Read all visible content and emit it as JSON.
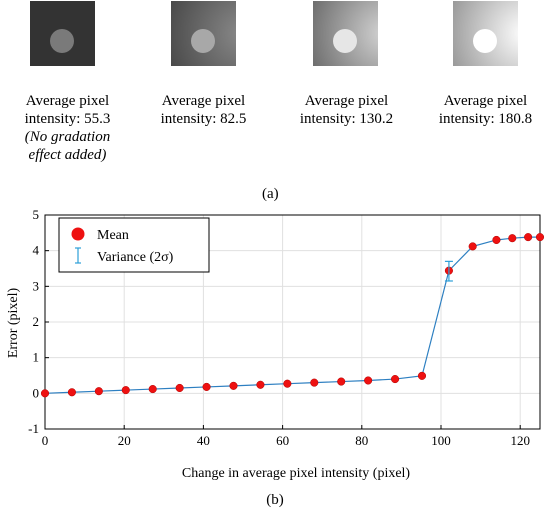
{
  "panel_a": {
    "label": "(a)",
    "items": [
      {
        "caption_line1": "Average pixel",
        "caption_line2": "intensity: 55.3",
        "note_line1": "(No gradation",
        "note_line2": "effect added)",
        "background": "#333333",
        "circle": "#7a7a7a",
        "gradient": [],
        "gradient_strength": 0
      },
      {
        "caption_line1": "Average pixel",
        "caption_line2": "intensity: 82.5",
        "note_line1": "",
        "note_line2": "",
        "background": "#4a4a4a",
        "circle": "#a8a8a8",
        "gradient_strength": 0.35
      },
      {
        "caption_line1": "Average pixel",
        "caption_line2": "intensity: 130.2",
        "note_line1": "",
        "note_line2": "",
        "background": "#6e6e6e",
        "circle": "#e6e6e6",
        "gradient_strength": 0.7
      },
      {
        "caption_line1": "Average pixel",
        "caption_line2": "intensity: 180.8",
        "note_line1": "",
        "note_line2": "",
        "background": "#9a9a9a",
        "circle": "#ffffff",
        "gradient_strength": 1.0
      }
    ]
  },
  "panel_b": {
    "label": "(b)"
  },
  "chart_data": {
    "type": "line",
    "xlabel": "Change in average pixel intensity (pixel)",
    "ylabel": "Error (pixel)",
    "xlim": [
      0,
      125
    ],
    "ylim": [
      -1,
      5
    ],
    "xticks": [
      0,
      20,
      40,
      60,
      80,
      100,
      120
    ],
    "yticks": [
      -1,
      0,
      1,
      2,
      3,
      4,
      5
    ],
    "grid": true,
    "legend_position": "top-left",
    "series": [
      {
        "name": "Mean",
        "color": "#ee1111",
        "line_color": "#2d7fc1",
        "x": [
          0,
          6.8,
          13.6,
          20.4,
          27.2,
          34,
          40.8,
          47.6,
          54.4,
          61.2,
          68,
          74.8,
          81.6,
          88.4,
          95.2,
          102,
          108,
          114,
          118,
          122,
          125
        ],
        "y": [
          0.0,
          0.03,
          0.06,
          0.09,
          0.12,
          0.15,
          0.18,
          0.21,
          0.24,
          0.27,
          0.3,
          0.33,
          0.36,
          0.4,
          0.49,
          3.44,
          4.12,
          4.3,
          4.35,
          4.38,
          4.38
        ]
      }
    ],
    "error_bars": {
      "name": "Variance (2σ)",
      "color": "#2d9fd8",
      "x": [
        102
      ],
      "low": [
        3.15
      ],
      "high": [
        3.7
      ]
    }
  }
}
